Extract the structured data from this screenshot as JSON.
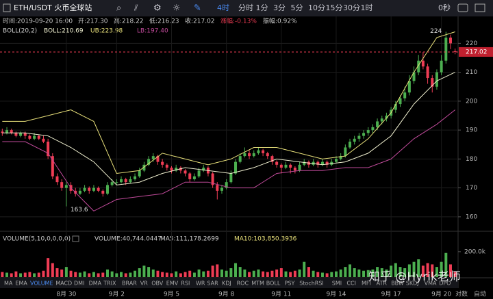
{
  "toolbar": {
    "symbol": "ETH/USDT 火币全球站",
    "interval": "4时",
    "intervals": [
      "分时",
      "1分",
      "3分",
      "5分",
      "10分",
      "15分",
      "30分",
      "1时"
    ],
    "countdown": "0秒"
  },
  "info": [
    "时间:2019-09-20 16:00",
    "开:217.30",
    "高:218.22",
    "低:216.23",
    "收:217.02",
    "涨幅:-0.13%",
    "振幅:0.92%"
  ],
  "boll_info": [
    "BOLL(20,2)",
    "BOLL:210.69",
    "UB:223.98",
    "LB:197.40"
  ],
  "volume_info": [
    "VOLUME(5,10,0,0,0,0)",
    "VOLUME:40,744.0447",
    "MA5:111,178.2699",
    "MA10:103,850.3936"
  ],
  "indicators": [
    "MA",
    "EMA",
    "VOLUME",
    "MACD",
    "DMI",
    "DMA",
    "TRIX",
    "BRAR",
    "VR",
    "OBV",
    "EMV",
    "RSI",
    "WR",
    "SAR",
    "KDJ",
    "ROC",
    "MTM",
    "BOLL",
    "PSY",
    "StochRSI",
    "SMI",
    "CCI",
    "MFI",
    "ATR",
    "BBW",
    "SKDJ",
    "VMA",
    "DPO"
  ],
  "axis_options": [
    "对数",
    "自动"
  ],
  "watermark": "知乎 @Hyrik老师",
  "chart_data": {
    "type": "candlestick",
    "ylim": [
      155,
      226
    ],
    "yticks": [
      160,
      170,
      180,
      190,
      200,
      210,
      220
    ],
    "vlim": [
      0,
      350
    ],
    "vticks": [
      {
        "value": 200,
        "label": "200.0k"
      }
    ],
    "up_color": "#4caf50",
    "down_color": "#ef3d55",
    "last_price": 217.02,
    "high_label": 224,
    "low_label": 163.6,
    "categories": [
      null,
      null,
      null,
      null,
      null,
      null,
      null,
      null,
      null,
      null,
      null,
      null,
      null,
      null,
      "8月 30",
      null,
      null,
      null,
      null,
      null,
      null,
      null,
      null,
      null,
      null,
      "9月 2",
      null,
      null,
      null,
      null,
      null,
      null,
      null,
      null,
      null,
      null,
      null,
      "9月 5",
      null,
      null,
      null,
      null,
      null,
      null,
      null,
      null,
      null,
      null,
      null,
      "9月 8",
      null,
      null,
      null,
      null,
      null,
      null,
      null,
      null,
      null,
      null,
      null,
      "9月 11",
      null,
      null,
      null,
      null,
      null,
      null,
      null,
      null,
      null,
      null,
      null,
      "9月 14",
      null,
      null,
      null,
      null,
      null,
      null,
      null,
      null,
      null,
      null,
      null,
      "9月 17",
      null,
      null,
      null,
      null,
      null,
      null,
      null,
      null,
      null,
      null,
      "9月 20",
      null,
      null,
      null
    ],
    "candles": [
      [
        189.5,
        190.5,
        188,
        189
      ],
      [
        189,
        191,
        188.5,
        190
      ],
      [
        190,
        190.5,
        188.5,
        189
      ],
      [
        189,
        189.5,
        187.5,
        188
      ],
      [
        188,
        189.5,
        187.5,
        189
      ],
      [
        189,
        189.5,
        187,
        188
      ],
      [
        188,
        188.5,
        186.5,
        187
      ],
      [
        187,
        189,
        186.5,
        188
      ],
      [
        188,
        188.5,
        186.5,
        187
      ],
      [
        187,
        188,
        185.5,
        186
      ],
      [
        186,
        187,
        180,
        181
      ],
      [
        181,
        182,
        173,
        174
      ],
      [
        174,
        175,
        171,
        172
      ],
      [
        172,
        173,
        169,
        170
      ],
      [
        170,
        172,
        163.6,
        171
      ],
      [
        171,
        172,
        168,
        169
      ],
      [
        169,
        170,
        167,
        168
      ],
      [
        168,
        170,
        167.5,
        169
      ],
      [
        169,
        171,
        168.5,
        170
      ],
      [
        170,
        170.5,
        168,
        169
      ],
      [
        169,
        171,
        168.5,
        170
      ],
      [
        170,
        170.5,
        168.5,
        169
      ],
      [
        169,
        169.5,
        167,
        168
      ],
      [
        168,
        172,
        167.5,
        171
      ],
      [
        171,
        173,
        170.5,
        172
      ],
      [
        172,
        173,
        171,
        172
      ],
      [
        172,
        174,
        171.5,
        173
      ],
      [
        173,
        173.5,
        171,
        172
      ],
      [
        172,
        174,
        171.5,
        173
      ],
      [
        173,
        175,
        172.5,
        174
      ],
      [
        174,
        177,
        173.5,
        176
      ],
      [
        176,
        179,
        175.5,
        178
      ],
      [
        178,
        181,
        177.5,
        180
      ],
      [
        180,
        182,
        179,
        181
      ],
      [
        181,
        181.5,
        178,
        179
      ],
      [
        179,
        180,
        177,
        178
      ],
      [
        178,
        178.5,
        176,
        177
      ],
      [
        177,
        177.5,
        175,
        176
      ],
      [
        176,
        178,
        175.5,
        177
      ],
      [
        177,
        177.5,
        175,
        176
      ],
      [
        176,
        176.5,
        174,
        175
      ],
      [
        175,
        175.5,
        172,
        173
      ],
      [
        173,
        175,
        172.5,
        174
      ],
      [
        174,
        177,
        173.5,
        176
      ],
      [
        176,
        178,
        175.5,
        177
      ],
      [
        177,
        177.5,
        174,
        175
      ],
      [
        175,
        175.5,
        170,
        171
      ],
      [
        171,
        172,
        166,
        169
      ],
      [
        169,
        171,
        168,
        170
      ],
      [
        170,
        173,
        169.5,
        172
      ],
      [
        172,
        176,
        171.5,
        175
      ],
      [
        175,
        180,
        174.5,
        179
      ],
      [
        179,
        182,
        178.5,
        181
      ],
      [
        181,
        184,
        180.5,
        182
      ],
      [
        182,
        183,
        180,
        181
      ],
      [
        181,
        183,
        180.5,
        182
      ],
      [
        182,
        184,
        181.5,
        183
      ],
      [
        183,
        183.5,
        181,
        182
      ],
      [
        182,
        182.5,
        180,
        181
      ],
      [
        181,
        181.5,
        178,
        179
      ],
      [
        179,
        179.5,
        177,
        178
      ],
      [
        178,
        178.5,
        175,
        177
      ],
      [
        177,
        179,
        176.5,
        178
      ],
      [
        178,
        178.5,
        175,
        177
      ],
      [
        177,
        177.5,
        175,
        176
      ],
      [
        176,
        179,
        175.5,
        178
      ],
      [
        178,
        180,
        177.5,
        179
      ],
      [
        179,
        179.5,
        177,
        178
      ],
      [
        178,
        180,
        177.5,
        179
      ],
      [
        179,
        179.5,
        177,
        178
      ],
      [
        178,
        180,
        177.5,
        179
      ],
      [
        179,
        179.5,
        177,
        178
      ],
      [
        178,
        180,
        177.5,
        179
      ],
      [
        179,
        181,
        178.5,
        180
      ],
      [
        180,
        182,
        179.5,
        181
      ],
      [
        181,
        185,
        180.5,
        184
      ],
      [
        184,
        187,
        183.5,
        186
      ],
      [
        186,
        188,
        185,
        187
      ],
      [
        187,
        189,
        186,
        188
      ],
      [
        188,
        190,
        187,
        189
      ],
      [
        189,
        191,
        188,
        190
      ],
      [
        190,
        192,
        189,
        191
      ],
      [
        191,
        194,
        190,
        193
      ],
      [
        193,
        195,
        192,
        194
      ],
      [
        194,
        196,
        193,
        195
      ],
      [
        195,
        198,
        194,
        197
      ],
      [
        197,
        200,
        196,
        199
      ],
      [
        199,
        202,
        198,
        201
      ],
      [
        201,
        205,
        200,
        203
      ],
      [
        203,
        209,
        202,
        207
      ],
      [
        207,
        212,
        206,
        210
      ],
      [
        210,
        216,
        209,
        214
      ],
      [
        214,
        217,
        211,
        212
      ],
      [
        212,
        213,
        206,
        208
      ],
      [
        208,
        209,
        203,
        205
      ],
      [
        205,
        211,
        204,
        210
      ],
      [
        210,
        216,
        209,
        214
      ],
      [
        214,
        224,
        213,
        222
      ],
      [
        222,
        223,
        218,
        220
      ],
      [
        217.3,
        218.22,
        216.23,
        217.02
      ]
    ],
    "volumes": [
      40,
      35,
      30,
      45,
      30,
      35,
      40,
      30,
      35,
      50,
      150,
      110,
      70,
      60,
      80,
      50,
      40,
      35,
      45,
      30,
      40,
      30,
      35,
      60,
      45,
      30,
      40,
      30,
      35,
      50,
      70,
      90,
      80,
      60,
      50,
      40,
      35,
      30,
      45,
      30,
      40,
      50,
      35,
      60,
      45,
      50,
      90,
      100,
      60,
      50,
      70,
      110,
      80,
      60,
      40,
      50,
      60,
      45,
      40,
      50,
      60,
      70,
      45,
      40,
      50,
      60,
      120,
      80,
      50,
      40,
      35,
      30,
      40,
      45,
      60,
      80,
      100,
      70,
      60,
      50,
      55,
      60,
      80,
      70,
      60,
      90,
      110,
      80,
      70,
      100,
      120,
      140,
      90,
      110,
      100,
      80,
      120,
      190,
      100,
      41
    ],
    "band_index": [
      0,
      5,
      10,
      15,
      20,
      25,
      30,
      35,
      40,
      45,
      50,
      55,
      60,
      65,
      70,
      75,
      80,
      85,
      90,
      95,
      99
    ],
    "bands": [
      {
        "color": "#e8e07a",
        "values": [
          193,
          193,
          195,
          197,
          193,
          175,
          176,
          182,
          180,
          178,
          180,
          184,
          184,
          182,
          180,
          181,
          187,
          196,
          210,
          222,
          224
        ]
      },
      {
        "color": "#f0f0d0",
        "values": [
          189,
          189,
          188,
          184,
          179,
          171,
          172,
          175,
          177,
          176,
          175,
          177,
          180,
          179,
          178,
          179,
          182,
          188,
          199,
          207,
          210
        ]
      },
      {
        "color": "#c04a9a",
        "values": [
          186,
          186,
          182,
          170,
          162,
          166,
          167,
          168,
          172,
          172,
          170,
          170,
          175,
          176,
          176,
          177,
          177,
          180,
          187,
          192,
          197
        ]
      }
    ]
  }
}
